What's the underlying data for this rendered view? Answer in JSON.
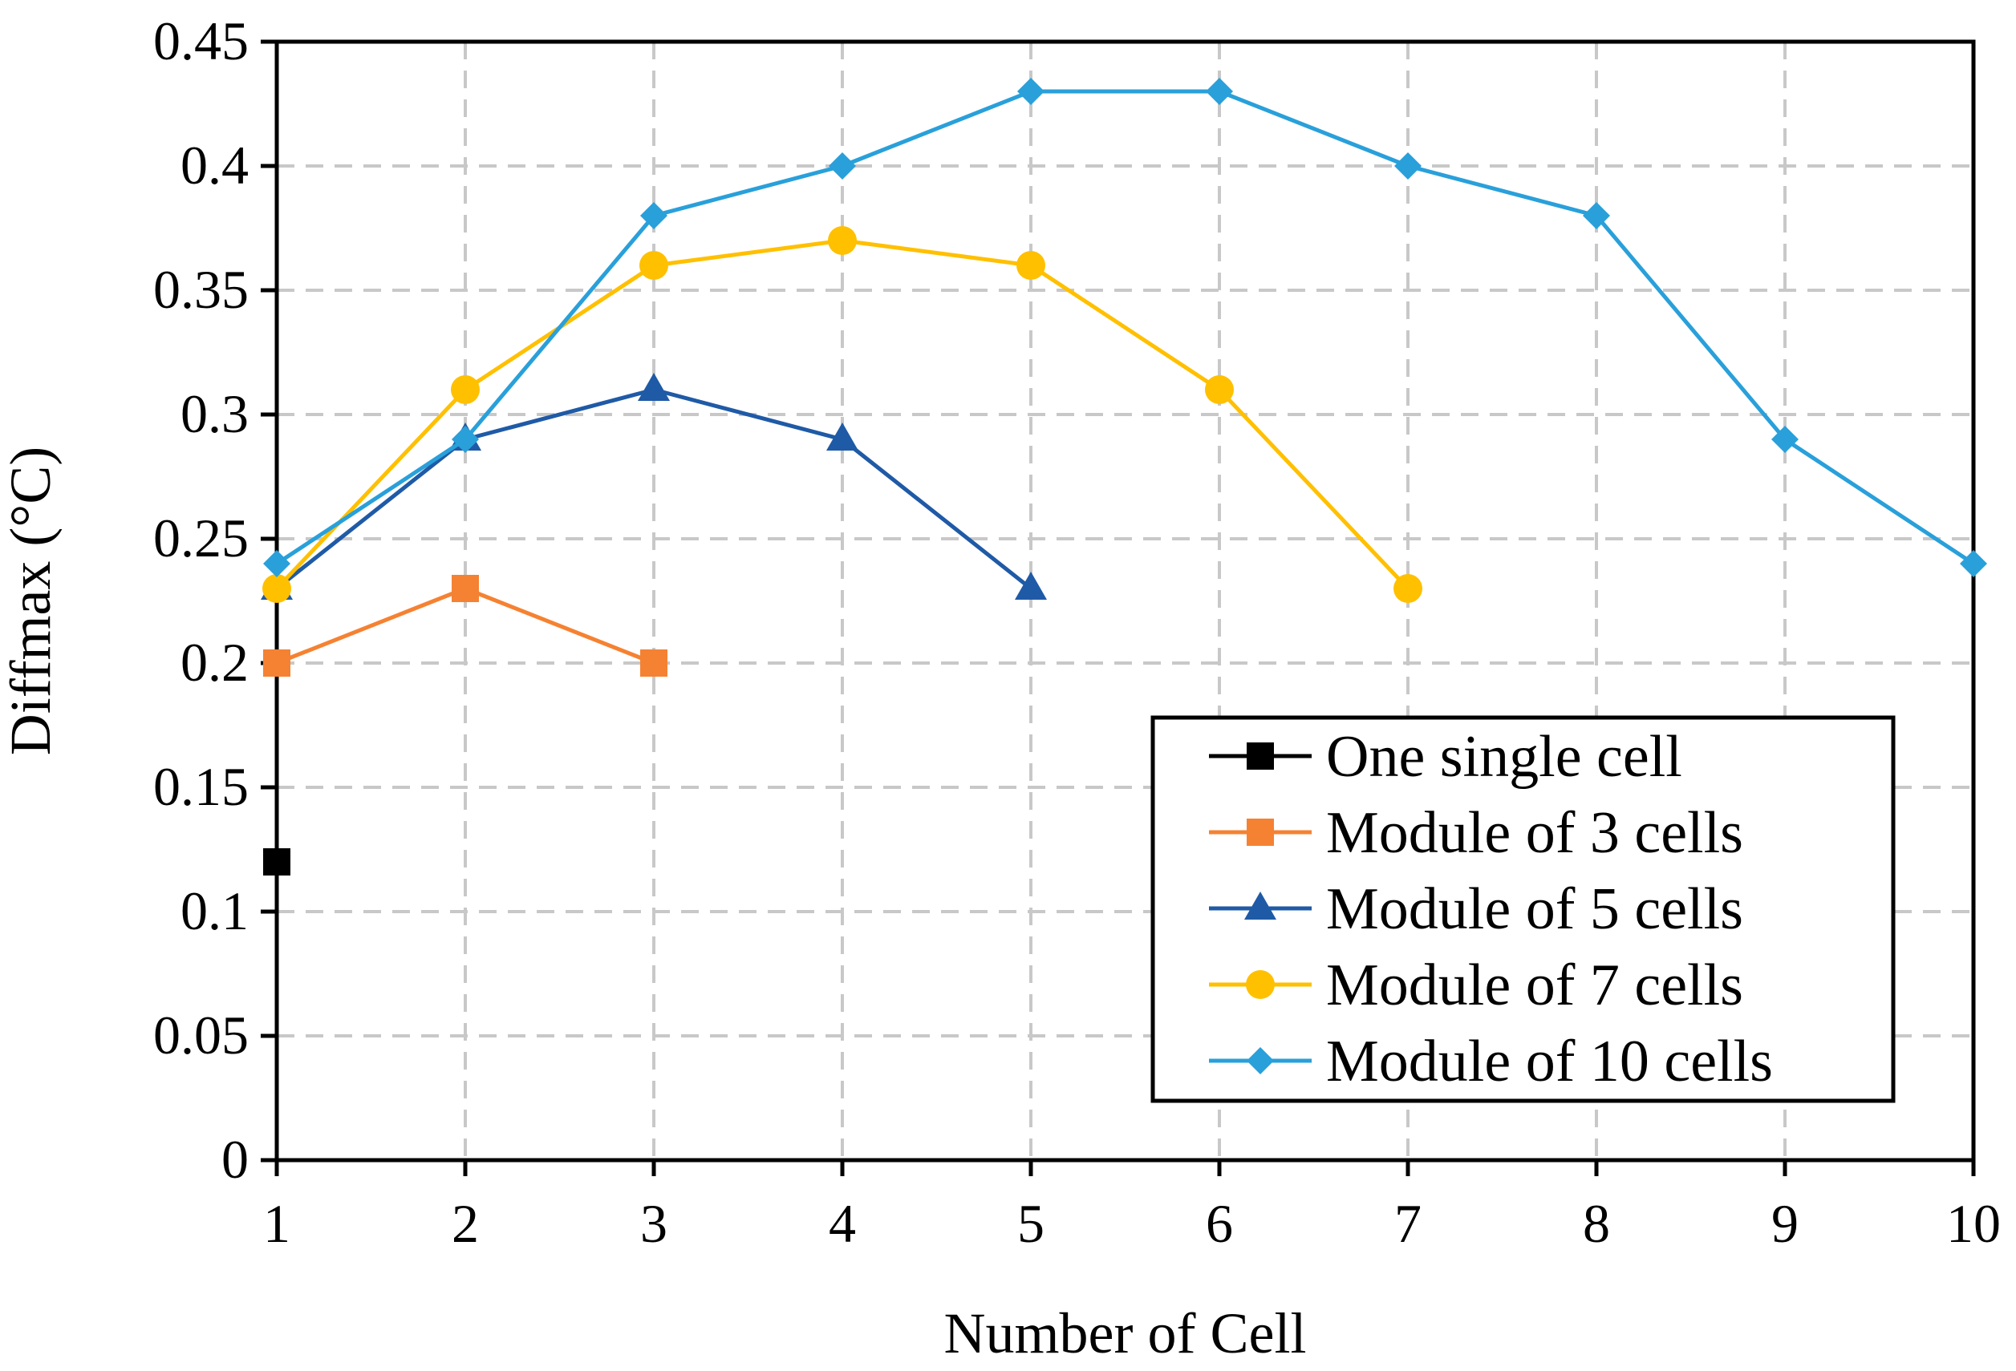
{
  "chart_data": {
    "type": "line",
    "title": "",
    "xlabel": "Number of Cell",
    "ylabel": "Diffmax (°C)",
    "xlim": [
      1,
      10
    ],
    "ylim": [
      0,
      0.45
    ],
    "x_ticks": [
      "1",
      "2",
      "3",
      "4",
      "5",
      "6",
      "7",
      "8",
      "9",
      "10"
    ],
    "y_ticks": [
      "0",
      "0.05",
      "0.1",
      "0.15",
      "0.2",
      "0.25",
      "0.3",
      "0.35",
      "0.4",
      "0.45"
    ],
    "grid": true,
    "legend_position": "bottom-right",
    "series": [
      {
        "name": "One single cell",
        "color": "#000000",
        "marker": "square",
        "x": [
          1
        ],
        "values": [
          0.12
        ]
      },
      {
        "name": "Module of 3 cells",
        "color": "#F58232",
        "marker": "square",
        "x": [
          1,
          2,
          3
        ],
        "values": [
          0.2,
          0.23,
          0.2
        ]
      },
      {
        "name": "Module of 5 cells",
        "color": "#1F5AA6",
        "marker": "triangle",
        "x": [
          1,
          2,
          3,
          4,
          5
        ],
        "values": [
          0.23,
          0.29,
          0.31,
          0.29,
          0.23
        ]
      },
      {
        "name": "Module of 7 cells",
        "color": "#FFC000",
        "marker": "circle",
        "x": [
          1,
          2,
          3,
          4,
          5,
          6,
          7
        ],
        "values": [
          0.23,
          0.31,
          0.36,
          0.37,
          0.36,
          0.31,
          0.23
        ]
      },
      {
        "name": "Module of 10 cells",
        "color": "#29A0DA",
        "marker": "diamond",
        "x": [
          1,
          2,
          3,
          4,
          5,
          6,
          7,
          8,
          9,
          10
        ],
        "values": [
          0.24,
          0.29,
          0.38,
          0.4,
          0.43,
          0.43,
          0.4,
          0.38,
          0.29,
          0.24
        ]
      }
    ]
  }
}
